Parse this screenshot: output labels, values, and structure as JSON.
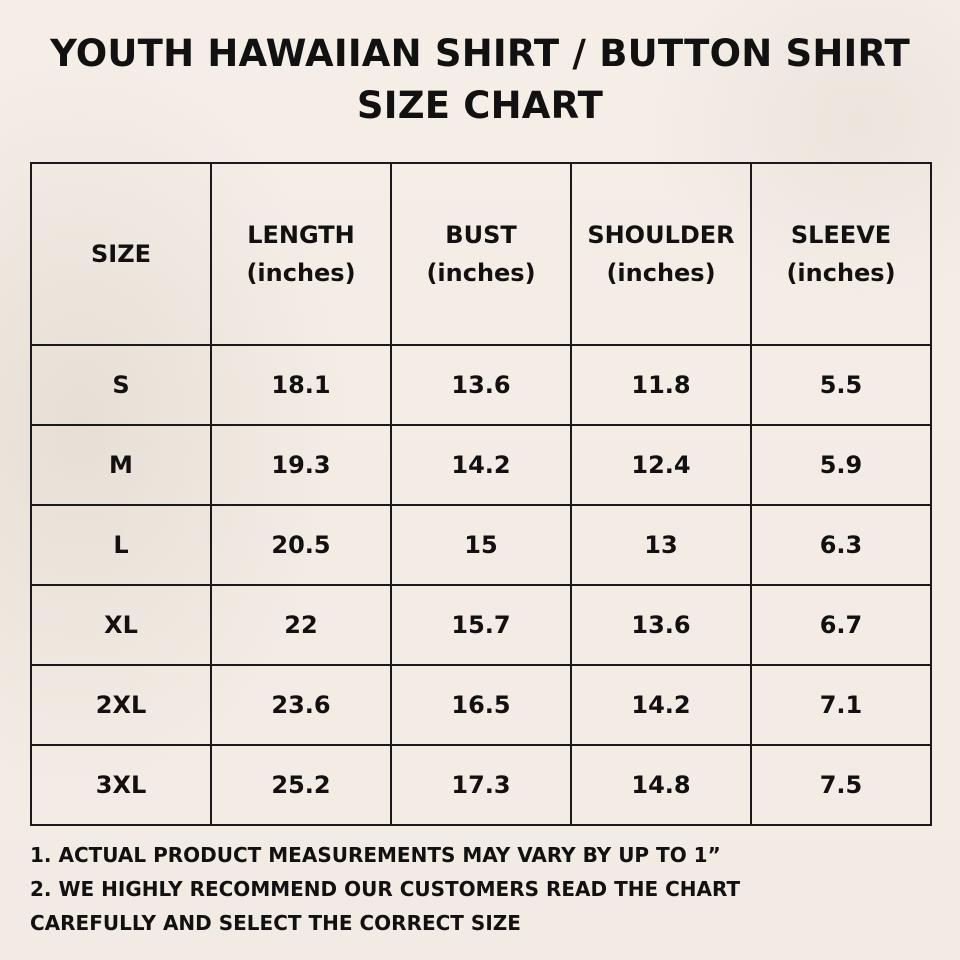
{
  "title": {
    "line1": "YOUTH HAWAIIAN SHIRT / BUTTON SHIRT",
    "line2": "SIZE CHART"
  },
  "table": {
    "headers": [
      {
        "label": "SIZE",
        "unit": ""
      },
      {
        "label": "LENGTH",
        "unit": "(inches)"
      },
      {
        "label": "BUST",
        "unit": "(inches)"
      },
      {
        "label": "SHOULDER",
        "unit": "(inches)"
      },
      {
        "label": "SLEEVE",
        "unit": "(inches)"
      }
    ],
    "rows": [
      [
        "S",
        "18.1",
        "13.6",
        "11.8",
        "5.5"
      ],
      [
        "M",
        "19.3",
        "14.2",
        "12.4",
        "5.9"
      ],
      [
        "L",
        "20.5",
        "15",
        "13",
        "6.3"
      ],
      [
        "XL",
        "22",
        "15.7",
        "13.6",
        "6.7"
      ],
      [
        "2XL",
        "23.6",
        "16.5",
        "14.2",
        "7.1"
      ],
      [
        "3XL",
        "25.2",
        "17.3",
        "14.8",
        "7.5"
      ]
    ]
  },
  "notes": {
    "line1": "1. ACTUAL PRODUCT MEASUREMENTS MAY VARY BY UP TO 1”",
    "line2": "2. WE HIGHLY RECOMMEND OUR CUSTOMERS READ THE CHART",
    "line3": "CAREFULLY AND SELECT THE CORRECT SIZE"
  },
  "colors": {
    "background": "#f3ede6",
    "text": "#111111",
    "border": "#1a1a1a"
  }
}
